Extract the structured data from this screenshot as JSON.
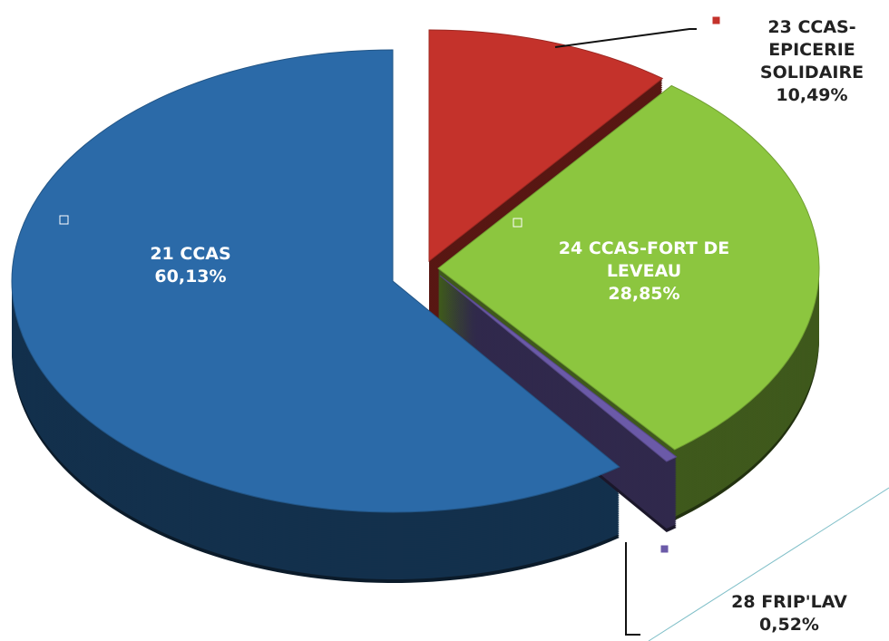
{
  "chart_data": {
    "type": "pie",
    "categories": [
      "21 CCAS",
      "23 CCAS-EPICERIE SOLIDAIRE",
      "24 CCAS-FORT DE LEVEAU",
      "28 FRIP'LAV"
    ],
    "values": [
      60.13,
      10.49,
      28.85,
      0.52
    ],
    "value_labels": [
      "60,13%",
      "10,49%",
      "28,85%",
      "0,52%"
    ],
    "colors": [
      "#2b6aa8",
      "#c4322b",
      "#8cc63f",
      "#6b5aa8"
    ]
  }
}
